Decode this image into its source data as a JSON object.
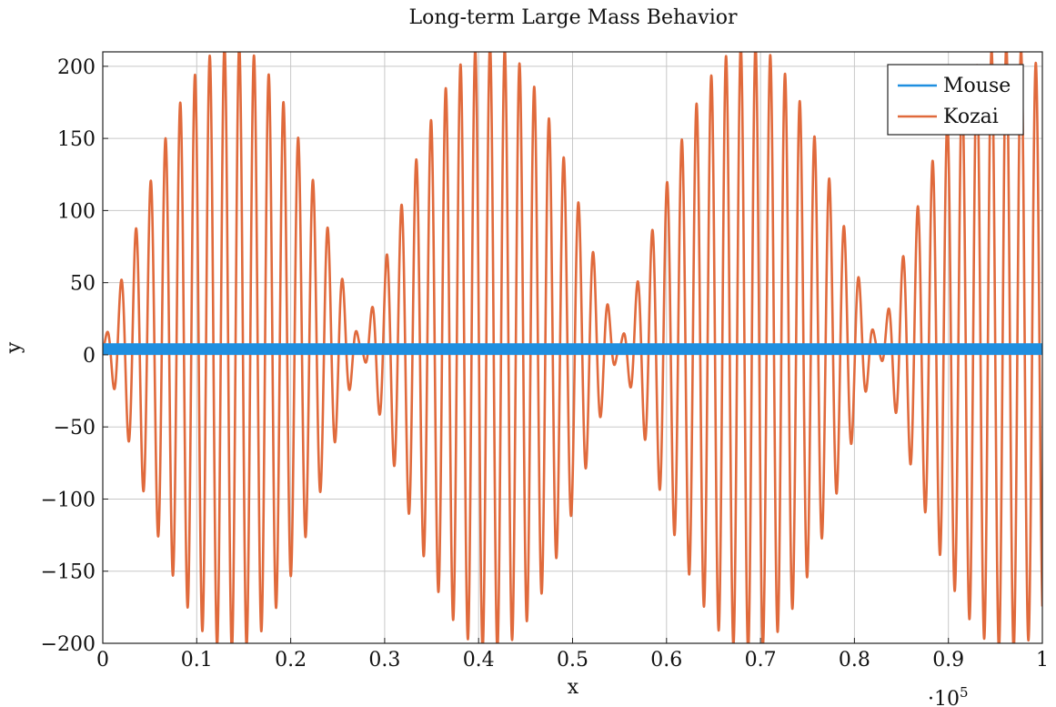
{
  "chart_data": {
    "type": "line",
    "title": "Long-term Large Mass Behavior",
    "xlabel": "x",
    "ylabel": "y",
    "x_scale_label": "·10",
    "x_scale_exponent": "5",
    "xlim": [
      0,
      1
    ],
    "ylim": [
      -200,
      210
    ],
    "x_ticks": [
      0,
      0.1,
      0.2,
      0.3,
      0.4,
      0.5,
      0.6,
      0.7,
      0.8,
      0.9,
      1
    ],
    "x_tick_labels": [
      "0",
      "0.1",
      "0.2",
      "0.3",
      "0.4",
      "0.5",
      "0.6",
      "0.7",
      "0.8",
      "0.9",
      "1"
    ],
    "y_ticks": [
      -200,
      -150,
      -100,
      -50,
      0,
      50,
      100,
      150,
      200
    ],
    "y_tick_labels": [
      "−200",
      "−150",
      "−100",
      "−50",
      "0",
      "50",
      "100",
      "150",
      "200"
    ],
    "grid": true,
    "legend_position": "top-right",
    "series": [
      {
        "name": "Mouse",
        "color": "#1f8fe0",
        "description_values": {
          "band_min": 0,
          "band_max": 8,
          "oscillation_period": 0.0012
        }
      },
      {
        "name": "Kozai",
        "color": "#e06a3c",
        "description_values": {
          "oscillation_period": 0.0157,
          "envelope_amplitude": 210,
          "envelope_period": 0.275,
          "envelope_node_offset": 0.0
        }
      }
    ]
  }
}
